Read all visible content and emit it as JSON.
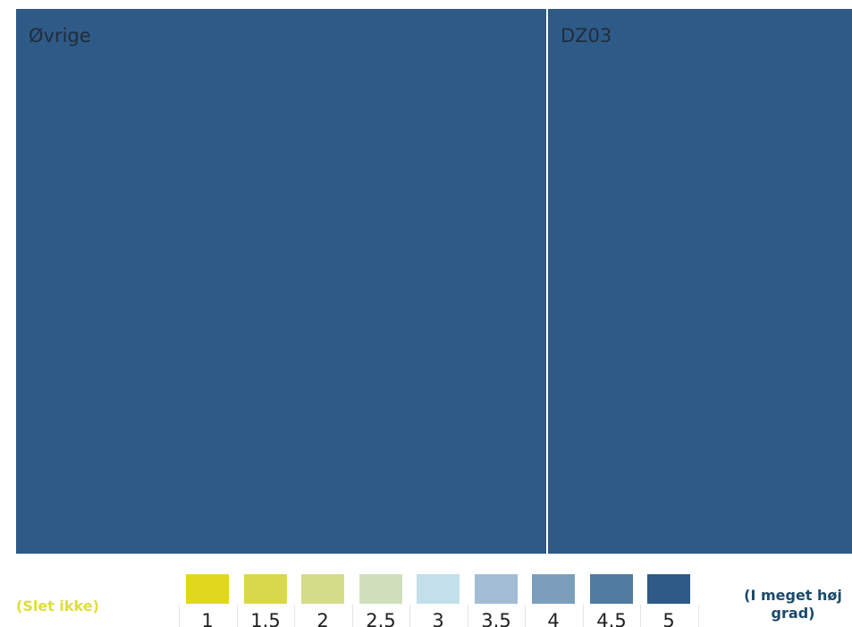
{
  "chart_data": {
    "type": "treemap",
    "tiles": [
      {
        "label": "Øvrige",
        "size": 63.6,
        "value": 5,
        "color": "#2e5a87"
      },
      {
        "label": "DZ03",
        "size": 36.4,
        "value": 5,
        "color": "#2e5a87"
      }
    ],
    "color_scale": {
      "low_label": "(Slet ikke)",
      "high_label": "(I meget høj grad)",
      "steps": [
        {
          "label": "1",
          "value": 1,
          "color": "#e1d81d"
        },
        {
          "label": "1.5",
          "value": 1.5,
          "color": "#d9d84a"
        },
        {
          "label": "2",
          "value": 2,
          "color": "#d5dc88"
        },
        {
          "label": "2.5",
          "value": 2.5,
          "color": "#cfdfbc"
        },
        {
          "label": "3",
          "value": 3,
          "color": "#c3dfea"
        },
        {
          "label": "3.5",
          "value": 3.5,
          "color": "#a2bdd3"
        },
        {
          "label": "4",
          "value": 4,
          "color": "#7b9ebd"
        },
        {
          "label": "4.5",
          "value": 4.5,
          "color": "#527ba1"
        },
        {
          "label": "5",
          "value": 5,
          "color": "#2e5a87"
        }
      ]
    },
    "legend_position": "bottom"
  }
}
